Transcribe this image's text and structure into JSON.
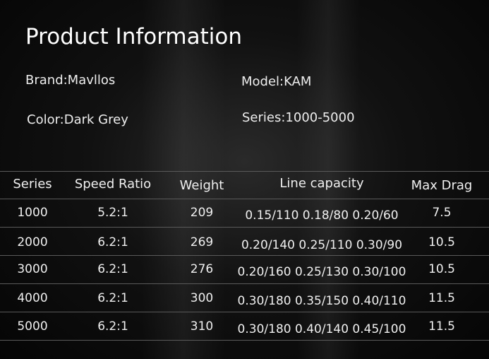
{
  "title": "Product Information",
  "info": {
    "brand": "Brand:Mavllos",
    "model": "Model:KAM",
    "color": "Color:Dark Grey",
    "series": "Series:1000-5000"
  },
  "table": {
    "headers": [
      "Series",
      "Speed Ratio",
      "Weight",
      "Line capacity",
      "Max Drag"
    ],
    "rows": [
      [
        "1000",
        "5.2:1",
        "209",
        "0.15/110 0.18/80 0.20/60",
        "7.5"
      ],
      [
        "2000",
        "6.2:1",
        "269",
        "0.20/140 0.25/110 0.30/90",
        "10.5"
      ],
      [
        "3000",
        "6.2:1",
        "276",
        "0.20/160 0.25/130 0.30/100",
        "10.5"
      ],
      [
        "4000",
        "6.2:1",
        "300",
        "0.30/180 0.35/150 0.40/110",
        "11.5"
      ],
      [
        "5000",
        "6.2:1",
        "310",
        "0.30/180 0.40/140 0.45/100",
        "11.5"
      ]
    ]
  }
}
